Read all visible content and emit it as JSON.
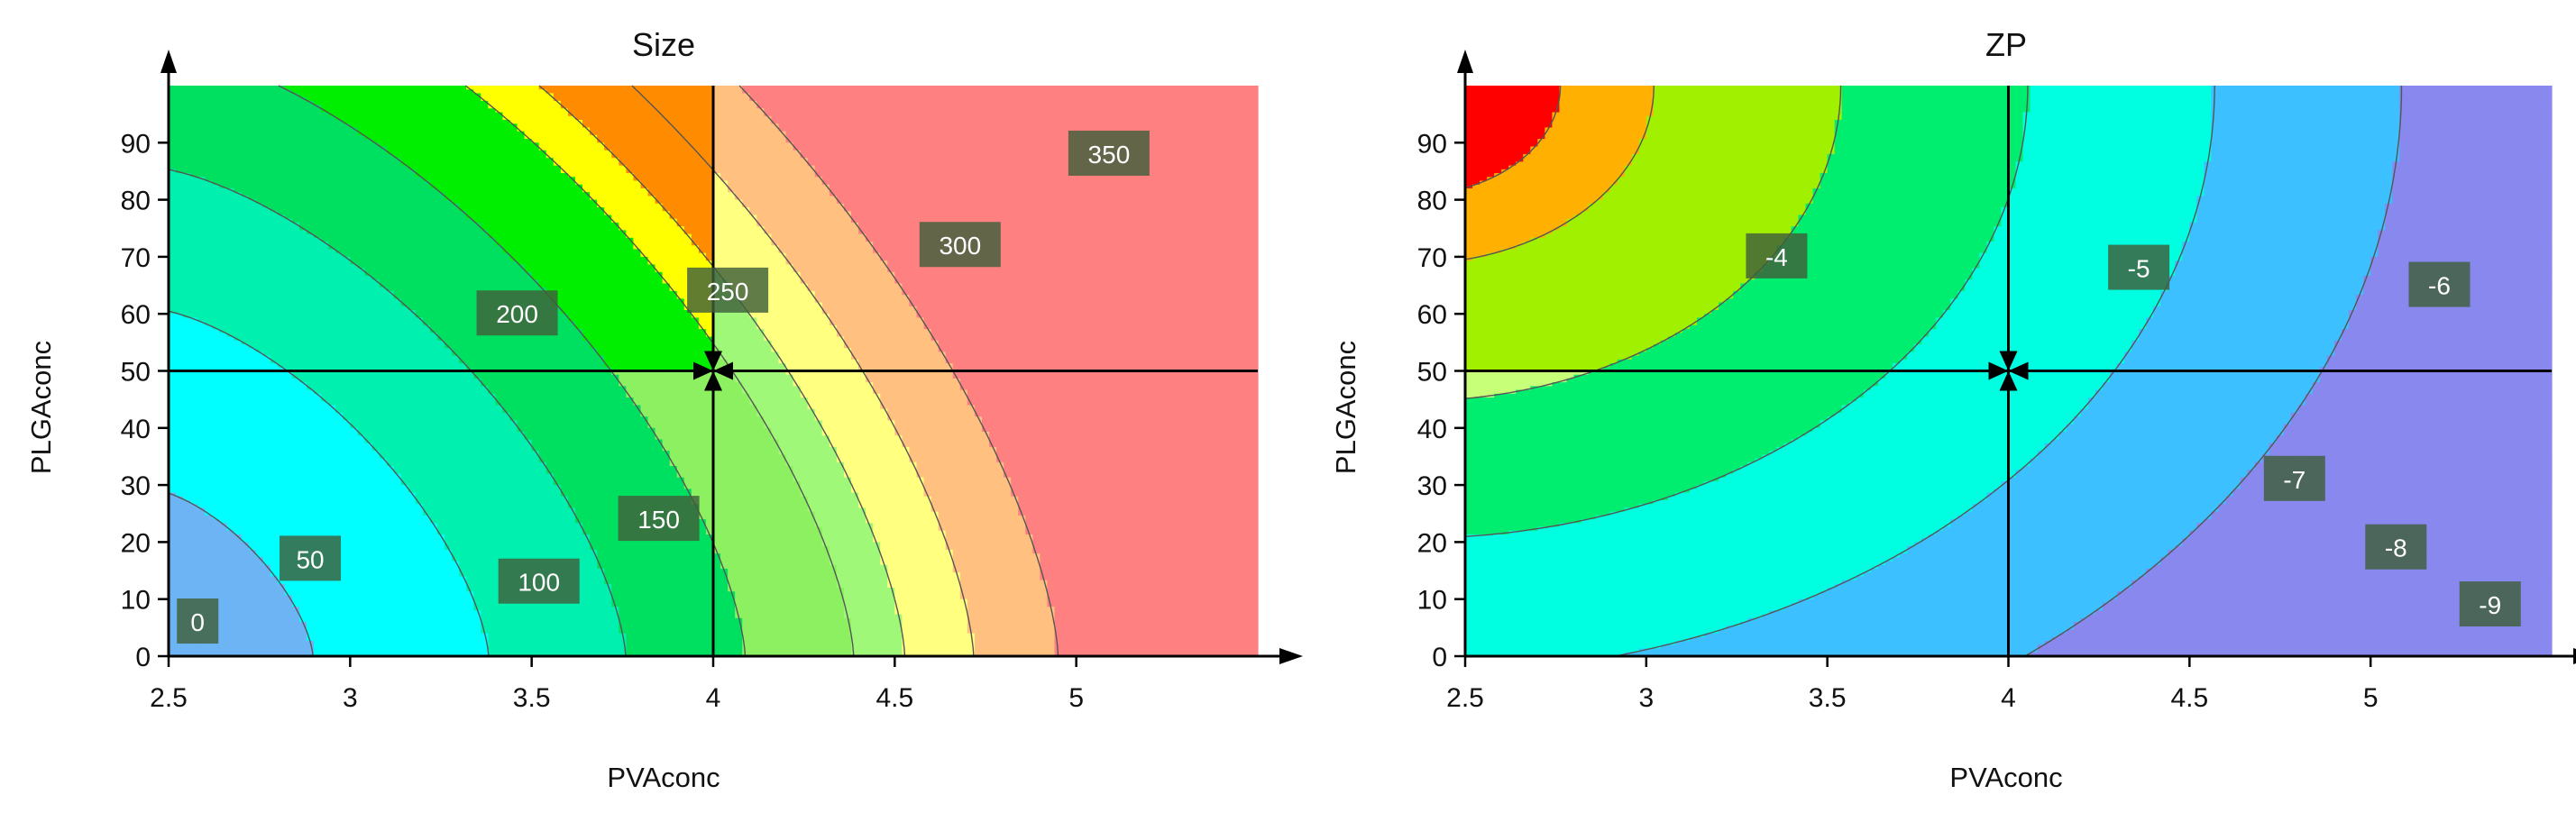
{
  "chart_data": [
    {
      "type": "contour",
      "title": "Size",
      "xlabel": "PVAconc",
      "ylabel": "PLGAconc",
      "xlim": [
        2.5,
        5.5
      ],
      "ylim": [
        0,
        100
      ],
      "xticks": [
        "2.5",
        "3",
        "3.5",
        "4",
        "4.5",
        "5"
      ],
      "yticks": [
        "0",
        "10",
        "20",
        "30",
        "40",
        "50",
        "60",
        "70",
        "80",
        "90"
      ],
      "crosshair": {
        "x": 4,
        "y": 50
      },
      "bands": [
        {
          "upper": 0,
          "color": "#9a8cf0"
        },
        {
          "upper": 25,
          "color": "#6cb4f4"
        },
        {
          "upper": 75,
          "color": "#00ffff"
        },
        {
          "upper": 125,
          "color": "#00f0b0"
        },
        {
          "upper": 175,
          "color": "#00e060"
        },
        {
          "upper": 200,
          "color": "#00ee00"
        },
        {
          "upper": 225,
          "color": "#00ee00"
        },
        {
          "upper": 250,
          "color": "#ffff00"
        },
        {
          "upper": 275,
          "color": "#ff8c00"
        }
      ],
      "lower_right_bands": [
        {
          "upper": 200,
          "color": "#00e060"
        },
        {
          "upper": 225,
          "color": "#8cf060"
        },
        {
          "upper": 250,
          "color": "#a0f878"
        },
        {
          "upper": 275,
          "color": "#ffff80"
        },
        {
          "upper": 325,
          "color": "#ffc080"
        },
        {
          "upper": 9999,
          "color": "#ff8080"
        }
      ],
      "contour_levels": [
        0,
        25,
        50,
        75,
        100,
        125,
        150,
        175,
        200,
        225,
        250,
        275,
        300,
        325,
        350
      ],
      "labels": [
        {
          "text": "0",
          "x": 2.58,
          "y": 6
        },
        {
          "text": "50",
          "x": 2.89,
          "y": 17
        },
        {
          "text": "100",
          "x": 3.52,
          "y": 13
        },
        {
          "text": "150",
          "x": 3.85,
          "y": 24
        },
        {
          "text": "200",
          "x": 3.46,
          "y": 60
        },
        {
          "text": "250",
          "x": 4.04,
          "y": 64
        },
        {
          "text": "300",
          "x": 4.68,
          "y": 72
        },
        {
          "text": "350",
          "x": 5.09,
          "y": 88
        }
      ]
    },
    {
      "type": "contour",
      "title": "ZP",
      "xlabel": "PVAconc",
      "ylabel": "PLGAconc",
      "xlim": [
        2.5,
        5.5
      ],
      "ylim": [
        0,
        100
      ],
      "xticks": [
        "2.5",
        "3",
        "3.5",
        "4",
        "4.5",
        "5"
      ],
      "yticks": [
        "0",
        "10",
        "20",
        "30",
        "40",
        "50",
        "60",
        "70",
        "80",
        "90"
      ],
      "crosshair": {
        "x": 4,
        "y": 50
      },
      "labels": [
        {
          "text": "-4",
          "x": 3.36,
          "y": 70
        },
        {
          "text": "-5",
          "x": 4.36,
          "y": 68
        },
        {
          "text": "-6",
          "x": 5.19,
          "y": 65
        },
        {
          "text": "-7",
          "x": 4.79,
          "y": 31
        },
        {
          "text": "-8",
          "x": 5.07,
          "y": 19
        },
        {
          "text": "-9",
          "x": 5.33,
          "y": 9
        }
      ]
    }
  ]
}
